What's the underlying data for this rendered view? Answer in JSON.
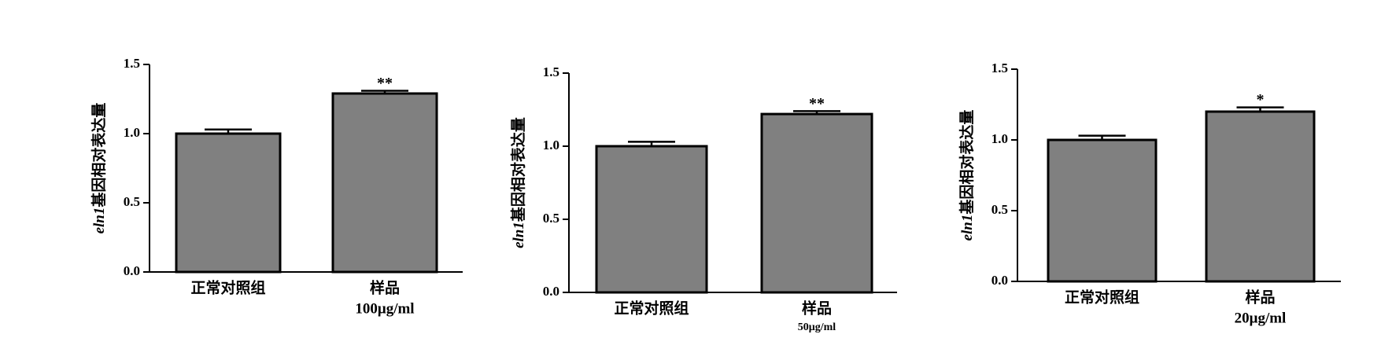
{
  "chart_data": [
    {
      "type": "bar",
      "ylabel": [
        "eln1",
        "基因相对表达量"
      ],
      "categories": [
        [
          "正常对照组"
        ],
        [
          "样品",
          "100μg/ml"
        ]
      ],
      "values": [
        1.0,
        1.29
      ],
      "errors": [
        0.03,
        0.02
      ],
      "significance": [
        null,
        "**"
      ],
      "color": "#808080",
      "ylim": [
        0,
        1.5
      ],
      "yticks": [
        {
          "value": 0,
          "label": "0.0"
        },
        0.5,
        {
          "value": 1,
          "label": "1.0"
        },
        1.5
      ]
    },
    {
      "type": "bar",
      "ylabel": [
        "eln1",
        "基因相对表达量"
      ],
      "categories": [
        [
          "正常对照组"
        ],
        [
          "样品",
          "50μg/ml"
        ]
      ],
      "values": [
        1.0,
        1.22
      ],
      "errors": [
        0.03,
        0.02
      ],
      "significance": [
        null,
        "**"
      ],
      "color": "#808080",
      "ylim": [
        0,
        1.5
      ],
      "yticks": [
        {
          "value": 0,
          "label": "0.0"
        },
        0.5,
        {
          "value": 1,
          "label": "1.0"
        },
        1.5
      ]
    },
    {
      "type": "bar",
      "ylabel": [
        "eln1",
        "基因相对表达量"
      ],
      "categories": [
        [
          "正常对照组"
        ],
        [
          "样品",
          "20μg/ml"
        ]
      ],
      "values": [
        1.0,
        1.2
      ],
      "errors": [
        0.03,
        0.03
      ],
      "significance": [
        null,
        "*"
      ],
      "color": "#808080",
      "ylim": [
        0,
        1.5
      ],
      "yticks": [
        {
          "value": 0,
          "label": "0.0"
        },
        0.5,
        {
          "value": 1,
          "label": "1.0"
        },
        1.5
      ]
    }
  ]
}
